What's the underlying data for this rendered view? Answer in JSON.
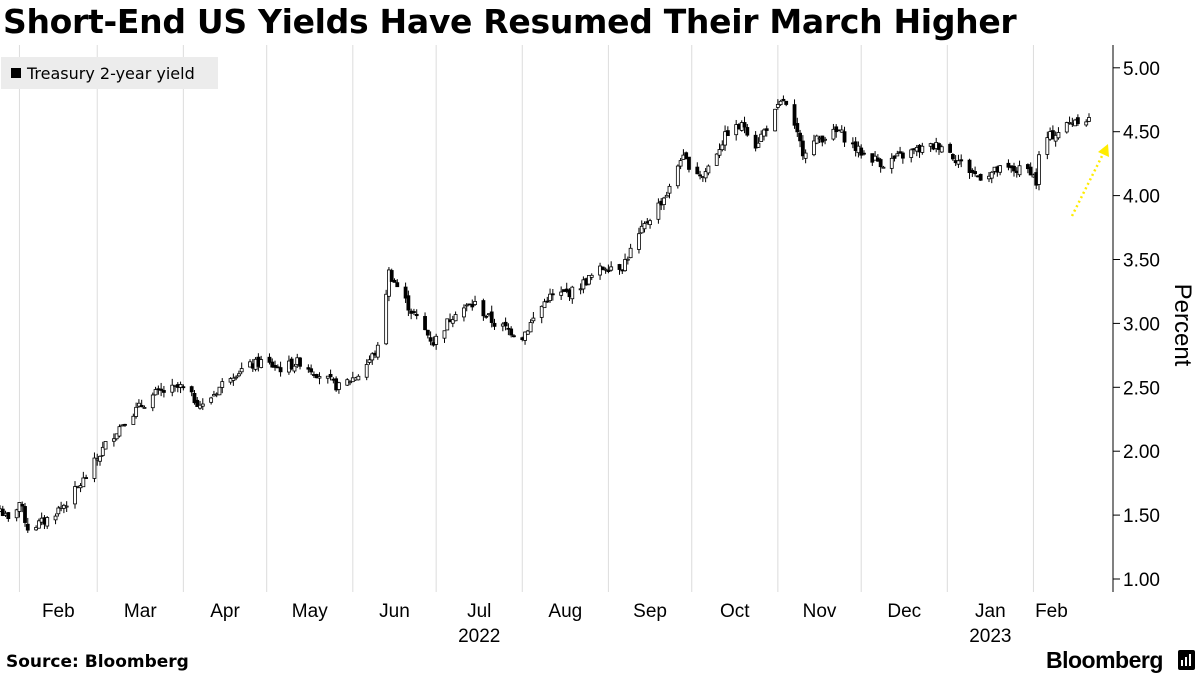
{
  "title": "Short-End US Yields Have Resumed Their March Higher",
  "source": "Source: Bloomberg",
  "brand": "Bloomberg",
  "brand_icon": "bloomberg-bar-logo-icon",
  "chart_data": {
    "type": "candlestick",
    "title": "Short-End US Yields Have Resumed Their March Higher",
    "ylabel": "Percent",
    "ylim": [
      0.95,
      5.2
    ],
    "yticks": [
      1.0,
      1.5,
      2.0,
      2.5,
      3.0,
      3.5,
      4.0,
      4.5,
      5.0
    ],
    "ytick_labels": [
      "1.00",
      "1.50",
      "2.00",
      "2.50",
      "3.00",
      "3.50",
      "4.00",
      "4.50",
      "5.00"
    ],
    "y_axis_position": "right",
    "grid": "vertical lines at month starts",
    "legend": {
      "position": "top-left",
      "entries": [
        "Treasury 2-year yield"
      ]
    },
    "x_months": [
      "Feb",
      "Mar",
      "Apr",
      "May",
      "Jun",
      "Jul",
      "Aug",
      "Sep",
      "Oct",
      "Nov",
      "Dec",
      "Jan",
      "Feb"
    ],
    "x_years": [
      {
        "label": "2022",
        "under": "Jul"
      },
      {
        "label": "2023",
        "under": "Jan"
      }
    ],
    "date_range": [
      "2022-01-25",
      "2023-02-21"
    ],
    "series": [
      {
        "name": "Treasury 2-year yield",
        "close_anchors": [
          [
            "2022-01-25",
            1.55
          ],
          [
            "2022-01-28",
            1.45
          ],
          [
            "2022-02-01",
            1.6
          ],
          [
            "2022-02-04",
            1.4
          ],
          [
            "2022-02-10",
            1.45
          ],
          [
            "2022-02-18",
            1.6
          ],
          [
            "2022-02-25",
            1.8
          ],
          [
            "2022-03-04",
            2.05
          ],
          [
            "2022-03-11",
            2.25
          ],
          [
            "2022-03-22",
            2.45
          ],
          [
            "2022-03-31",
            2.5
          ],
          [
            "2022-04-08",
            2.35
          ],
          [
            "2022-04-18",
            2.6
          ],
          [
            "2022-04-29",
            2.7
          ],
          [
            "2022-05-06",
            2.65
          ],
          [
            "2022-05-13",
            2.7
          ],
          [
            "2022-05-20",
            2.6
          ],
          [
            "2022-05-27",
            2.5
          ],
          [
            "2022-06-03",
            2.6
          ],
          [
            "2022-06-10",
            2.8
          ],
          [
            "2022-06-14",
            3.4
          ],
          [
            "2022-06-22",
            3.1
          ],
          [
            "2022-06-30",
            2.85
          ],
          [
            "2022-07-08",
            3.1
          ],
          [
            "2022-07-15",
            3.15
          ],
          [
            "2022-07-22",
            3.0
          ],
          [
            "2022-08-01",
            2.9
          ],
          [
            "2022-08-10",
            3.2
          ],
          [
            "2022-08-19",
            3.25
          ],
          [
            "2022-08-31",
            3.45
          ],
          [
            "2022-09-06",
            3.45
          ],
          [
            "2022-09-15",
            3.8
          ],
          [
            "2022-09-23",
            4.05
          ],
          [
            "2022-09-27",
            4.3
          ],
          [
            "2022-10-05",
            4.15
          ],
          [
            "2022-10-14",
            4.5
          ],
          [
            "2022-10-20",
            4.55
          ],
          [
            "2022-10-24",
            4.4
          ],
          [
            "2022-11-03",
            4.75
          ],
          [
            "2022-11-10",
            4.35
          ],
          [
            "2022-11-16",
            4.45
          ],
          [
            "2022-11-23",
            4.5
          ],
          [
            "2022-11-30",
            4.35
          ],
          [
            "2022-12-09",
            4.25
          ],
          [
            "2022-12-20",
            4.35
          ],
          [
            "2022-12-30",
            4.4
          ],
          [
            "2023-01-06",
            4.25
          ],
          [
            "2023-01-12",
            4.15
          ],
          [
            "2023-01-20",
            4.2
          ],
          [
            "2023-01-31",
            4.2
          ],
          [
            "2023-02-02",
            4.1
          ],
          [
            "2023-02-03",
            4.3
          ],
          [
            "2023-02-06",
            4.45
          ],
          [
            "2023-02-10",
            4.5
          ],
          [
            "2023-02-16",
            4.6
          ],
          [
            "2023-02-21",
            4.6
          ]
        ]
      }
    ],
    "annotation": {
      "type": "dotted-arrow",
      "color": "#ffec00",
      "direction": "up-right",
      "target": "latest yield"
    }
  }
}
